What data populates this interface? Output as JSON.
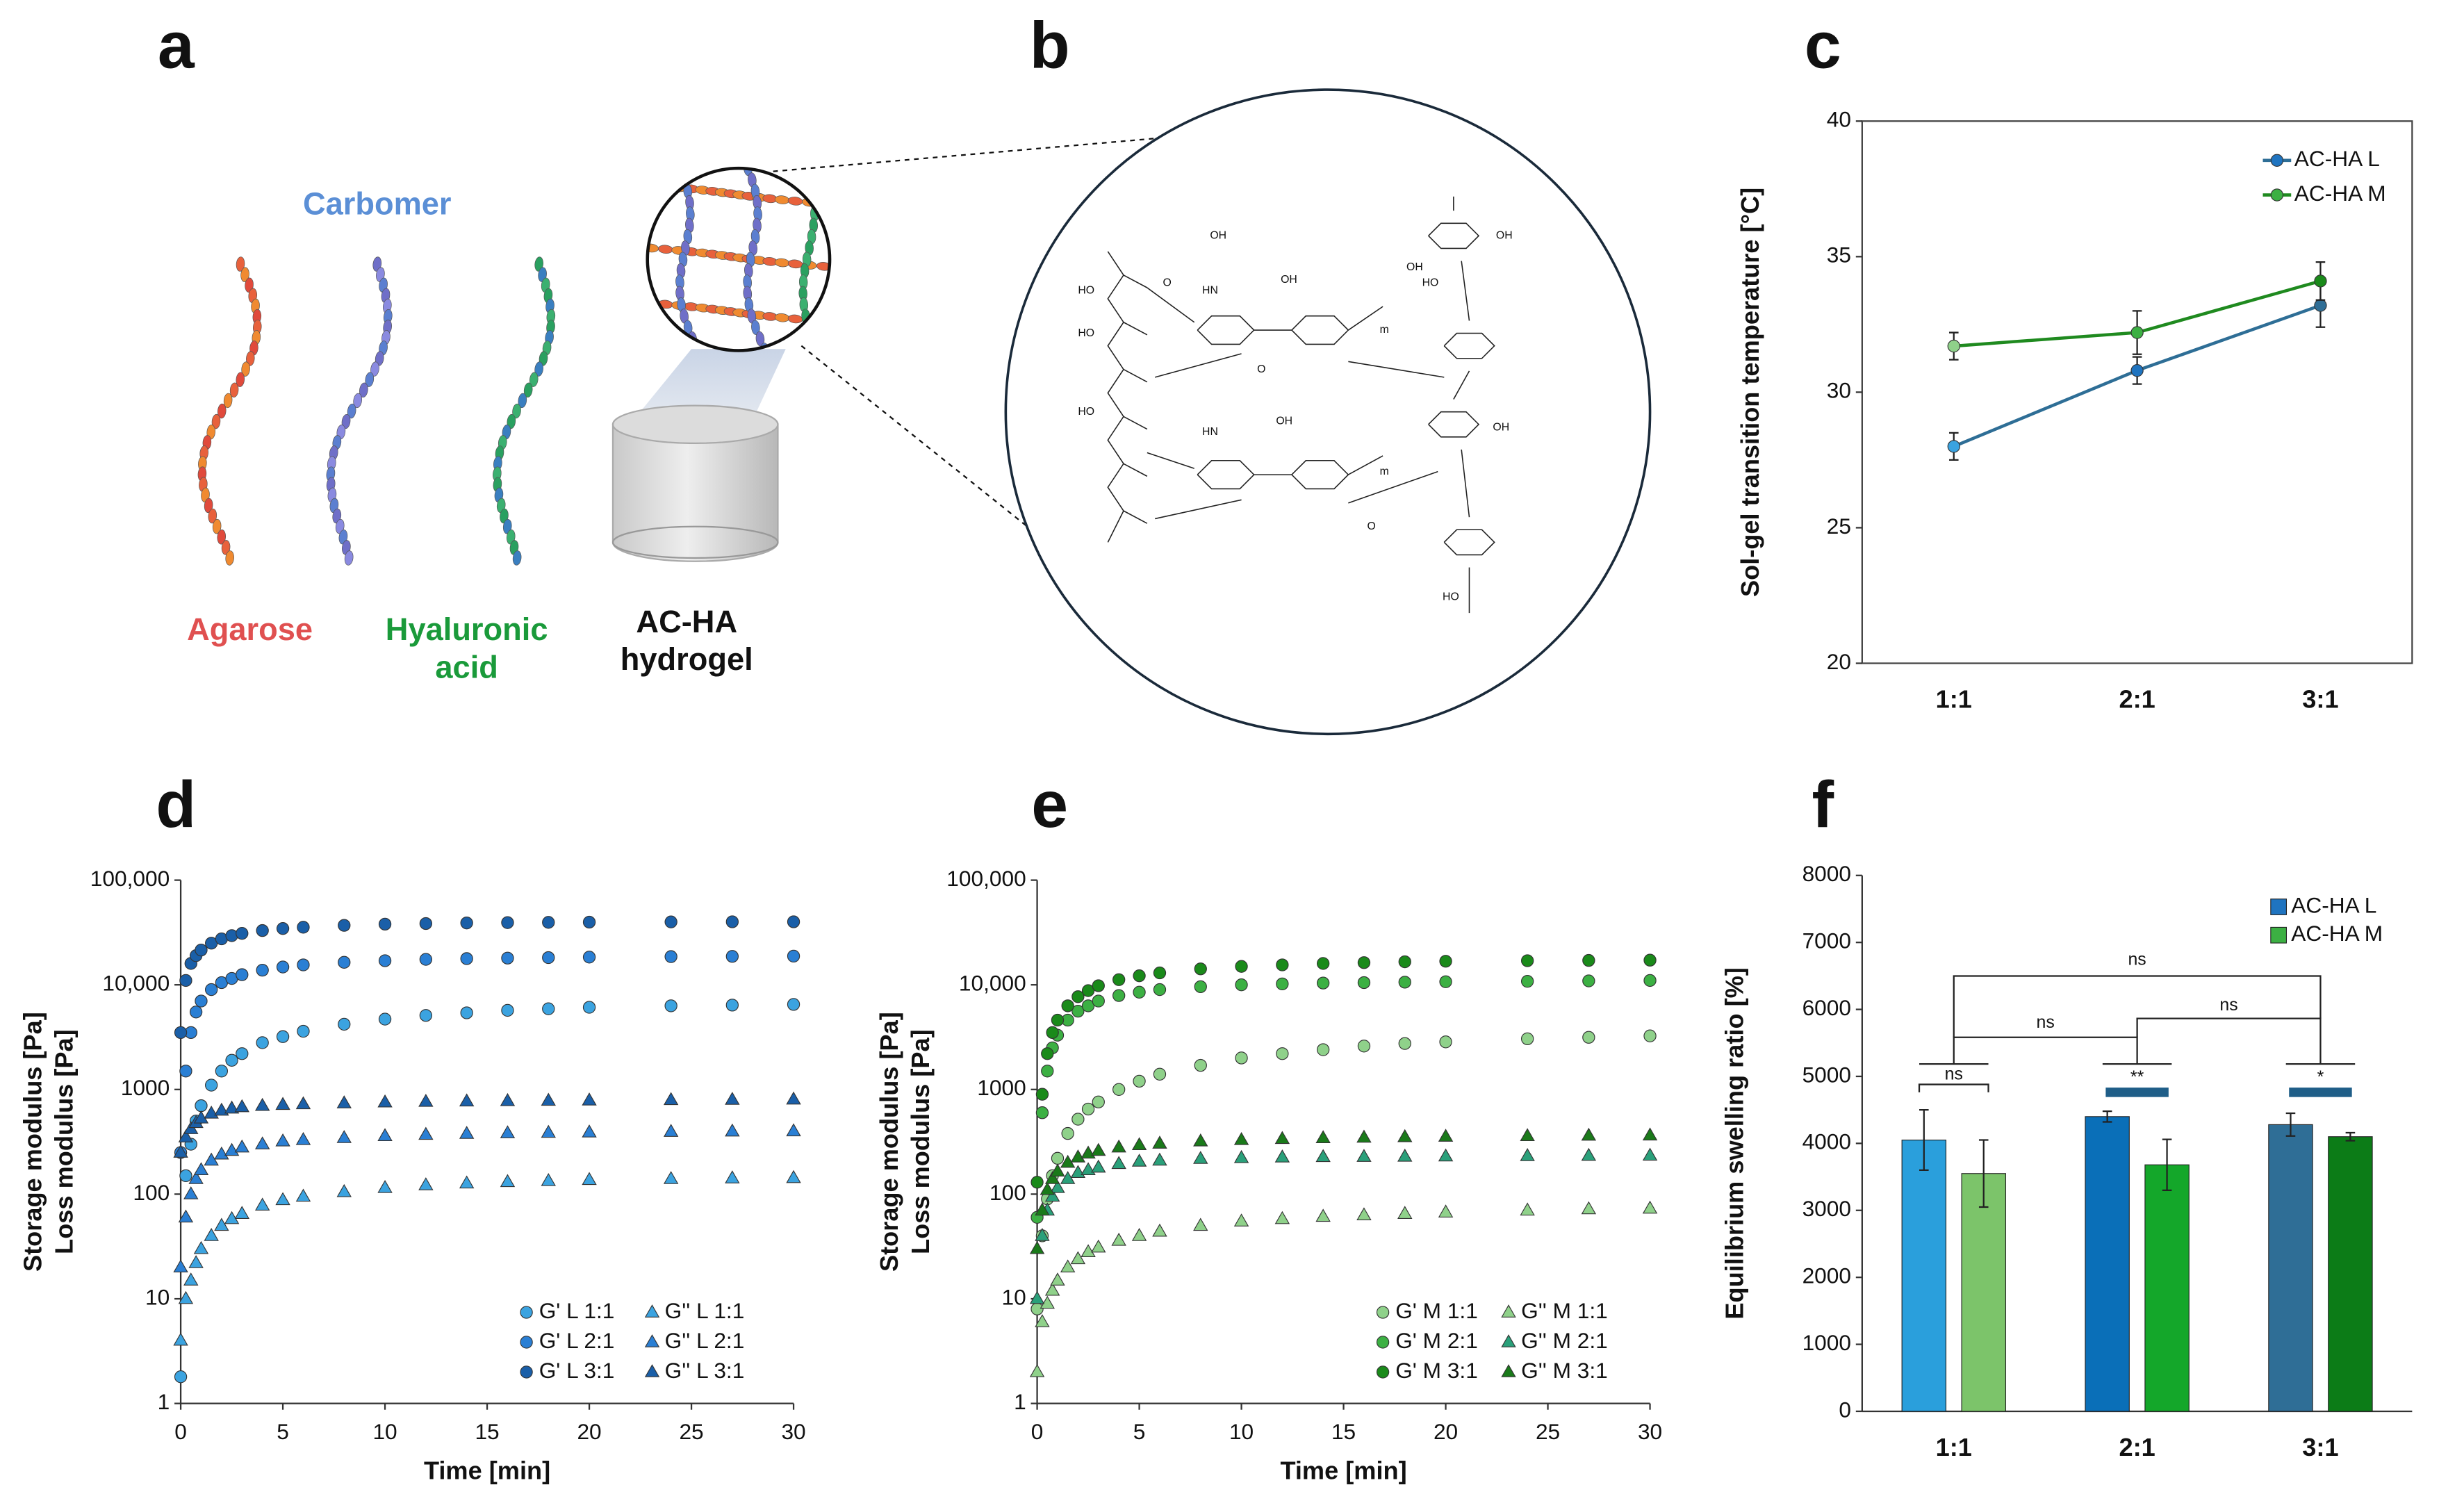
{
  "panel_labels": [
    "a",
    "b",
    "c",
    "d",
    "e",
    "f"
  ],
  "diagram_a": {
    "carbomer": [
      "Carbomer"
    ],
    "agarose": [
      "Agarose"
    ],
    "hyaluronic_acid": [
      "Hyaluronic",
      "acid"
    ],
    "hydrogel": [
      "AC-HA",
      "hydrogel"
    ]
  },
  "diagram_b": {
    "structure_labels": [
      "HO",
      "OH",
      "HO",
      "HO",
      "HN",
      "HN",
      "OH",
      "OH",
      "m",
      "m",
      "OH",
      "OH",
      "HO",
      "OH",
      "HO",
      "O",
      "O",
      "O"
    ]
  },
  "chart_data": [
    {
      "type": "line",
      "ylabel": "Sol-gel transition temperature [°C]",
      "categories": [
        "1:1",
        "2:1",
        "3:1"
      ],
      "ylim": [
        20,
        40
      ],
      "yticks": [
        20,
        25,
        30,
        35,
        40
      ],
      "legend": "upper right",
      "series": [
        {
          "name": "AC-HA L",
          "color": "#2e6e96",
          "marker_colors": [
            "#3ba3e0",
            "#1f74c0",
            "#2f6e96"
          ],
          "values": [
            28.0,
            30.8,
            33.2
          ],
          "errors": [
            0.5,
            0.5,
            0.8
          ]
        },
        {
          "name": "AC-HA M",
          "color": "#1f8a1f",
          "marker_colors": [
            "#8fd18a",
            "#3cb043",
            "#1a8a1a"
          ],
          "values": [
            31.7,
            32.2,
            34.1
          ],
          "errors": [
            0.5,
            0.8,
            0.7
          ]
        }
      ]
    },
    {
      "type": "scatter",
      "xlabel": "Time [min]",
      "ylabel": [
        "Storage modulus [Pa]",
        "Loss modulus [Pa]"
      ],
      "log_scale": true,
      "xlim": [
        0,
        30
      ],
      "xticks": [
        0,
        5,
        10,
        15,
        20,
        25,
        30
      ],
      "ylim": [
        1,
        100000
      ],
      "yticks": [
        1,
        10,
        100,
        1000,
        {
          "value": 10000,
          "label": "10,000"
        },
        {
          "value": 100000,
          "label": "100,000"
        }
      ],
      "legend": "lower right",
      "x": [
        0,
        0.25,
        0.5,
        0.75,
        1,
        1.5,
        2,
        2.5,
        3,
        4,
        5,
        6,
        8,
        10,
        12,
        14,
        16,
        18,
        20,
        24,
        27,
        30
      ],
      "series": [
        {
          "name": "G' L 1:1",
          "color": "#3ba3e0",
          "marker": "circle",
          "values": [
            1.8,
            150,
            300,
            500,
            700,
            1100,
            1500,
            1900,
            2200,
            2800,
            3200,
            3600,
            4200,
            4700,
            5100,
            5400,
            5700,
            5900,
            6100,
            6300,
            6400,
            6500
          ]
        },
        {
          "name": "G' L 2:1",
          "color": "#2a7fd4",
          "marker": "circle",
          "values": [
            250,
            1500,
            3500,
            5500,
            7000,
            9000,
            10500,
            11500,
            12500,
            13800,
            14800,
            15500,
            16400,
            17000,
            17500,
            17800,
            18000,
            18200,
            18400,
            18600,
            18700,
            18800
          ]
        },
        {
          "name": "G' L 3:1",
          "color": "#1a5fa8",
          "marker": "circle",
          "values": [
            3500,
            11000,
            16000,
            19000,
            21500,
            25000,
            27500,
            29500,
            31000,
            33000,
            34500,
            35500,
            37000,
            38000,
            38500,
            39000,
            39300,
            39500,
            39700,
            39900,
            40000,
            40000
          ]
        },
        {
          "name": "G'' L 1:1",
          "color": "#3ba3e0",
          "marker": "triangle",
          "values": [
            4,
            10,
            15,
            22,
            30,
            40,
            50,
            58,
            65,
            78,
            88,
            95,
            105,
            115,
            122,
            127,
            131,
            134,
            137,
            140,
            142,
            143
          ]
        },
        {
          "name": "G'' L 2:1",
          "color": "#2a7fd4",
          "marker": "triangle",
          "values": [
            20,
            60,
            100,
            140,
            170,
            210,
            240,
            260,
            280,
            300,
            320,
            330,
            345,
            360,
            370,
            378,
            383,
            387,
            390,
            395,
            398,
            400
          ]
        },
        {
          "name": "G'' L 3:1",
          "color": "#1a5fa8",
          "marker": "triangle",
          "values": [
            250,
            350,
            420,
            480,
            530,
            590,
            630,
            660,
            680,
            700,
            715,
            725,
            740,
            755,
            765,
            772,
            778,
            783,
            788,
            795,
            800,
            805
          ]
        }
      ]
    },
    {
      "type": "scatter",
      "xlabel": "Time [min]",
      "ylabel": [
        "Storage modulus [Pa]",
        "Loss modulus [Pa]"
      ],
      "log_scale": true,
      "xlim": [
        0,
        30
      ],
      "xticks": [
        0,
        5,
        10,
        15,
        20,
        25,
        30
      ],
      "ylim": [
        1,
        100000
      ],
      "yticks": [
        1,
        10,
        100,
        1000,
        {
          "value": 10000,
          "label": "10,000"
        },
        {
          "value": 100000,
          "label": "100,000"
        }
      ],
      "legend": "lower right",
      "x": [
        0,
        0.25,
        0.5,
        0.75,
        1,
        1.5,
        2,
        2.5,
        3,
        4,
        5,
        6,
        8,
        10,
        12,
        14,
        16,
        18,
        20,
        24,
        27,
        30
      ],
      "series": [
        {
          "name": "G' M 1:1",
          "color": "#8fd18a",
          "marker": "circle",
          "values": [
            8,
            40,
            90,
            150,
            220,
            380,
            520,
            650,
            760,
            1000,
            1200,
            1400,
            1700,
            2000,
            2200,
            2400,
            2600,
            2750,
            2850,
            3050,
            3150,
            3250
          ]
        },
        {
          "name": "G' M 2:1",
          "color": "#3cb043",
          "marker": "circle",
          "values": [
            60,
            600,
            1500,
            2500,
            3300,
            4600,
            5600,
            6300,
            7000,
            7900,
            8500,
            9000,
            9600,
            10000,
            10200,
            10400,
            10500,
            10600,
            10700,
            10800,
            10900,
            11000
          ]
        },
        {
          "name": "G' M 3:1",
          "color": "#1a8a1a",
          "marker": "circle",
          "values": [
            130,
            900,
            2200,
            3500,
            4600,
            6300,
            7700,
            8800,
            9800,
            11200,
            12200,
            13000,
            14200,
            15000,
            15500,
            16000,
            16300,
            16600,
            16800,
            17000,
            17100,
            17200
          ]
        },
        {
          "name": "G'' M 1:1",
          "color": "#8fd18a",
          "marker": "triangle",
          "values": [
            2,
            6,
            9,
            12,
            15,
            20,
            24,
            28,
            31,
            36,
            40,
            44,
            50,
            55,
            58,
            61,
            63,
            65,
            67,
            70,
            72,
            73
          ]
        },
        {
          "name": "G'' M 2:1",
          "color": "#2aa07a",
          "marker": "triangle",
          "values": [
            10,
            40,
            70,
            95,
            115,
            140,
            160,
            170,
            180,
            195,
            205,
            210,
            218,
            222,
            225,
            227,
            228,
            229,
            230,
            232,
            233,
            234
          ]
        },
        {
          "name": "G'' M 3:1",
          "color": "#1a7a1a",
          "marker": "triangle",
          "values": [
            30,
            70,
            110,
            140,
            165,
            200,
            225,
            245,
            260,
            280,
            295,
            305,
            320,
            330,
            338,
            344,
            348,
            352,
            355,
            360,
            363,
            365
          ]
        }
      ]
    },
    {
      "type": "bar",
      "ylabel": "Equilibrium swelling ratio [%]",
      "categories": [
        "1:1",
        "2:1",
        "3:1"
      ],
      "ylim": [
        0,
        8000
      ],
      "yticks": [
        0,
        1000,
        2000,
        3000,
        4000,
        5000,
        6000,
        7000,
        8000
      ],
      "legend": "upper right",
      "series": [
        {
          "name": "AC-HA L",
          "color": "#1f74c0",
          "colors": [
            "#2a9fdc",
            "#0a6fb8",
            "#2f6e96"
          ],
          "values": [
            4050,
            4400,
            4280
          ],
          "errors": [
            450,
            80,
            170
          ]
        },
        {
          "name": "AC-HA M",
          "color": "#3cb043",
          "colors": [
            "#7cc46a",
            "#14a72a",
            "#0c7c17"
          ],
          "values": [
            3550,
            3680,
            4100
          ],
          "errors": [
            500,
            380,
            60
          ]
        }
      ],
      "annotations": [
        "ns",
        "**",
        "*",
        "ns",
        "ns",
        "ns"
      ]
    }
  ]
}
